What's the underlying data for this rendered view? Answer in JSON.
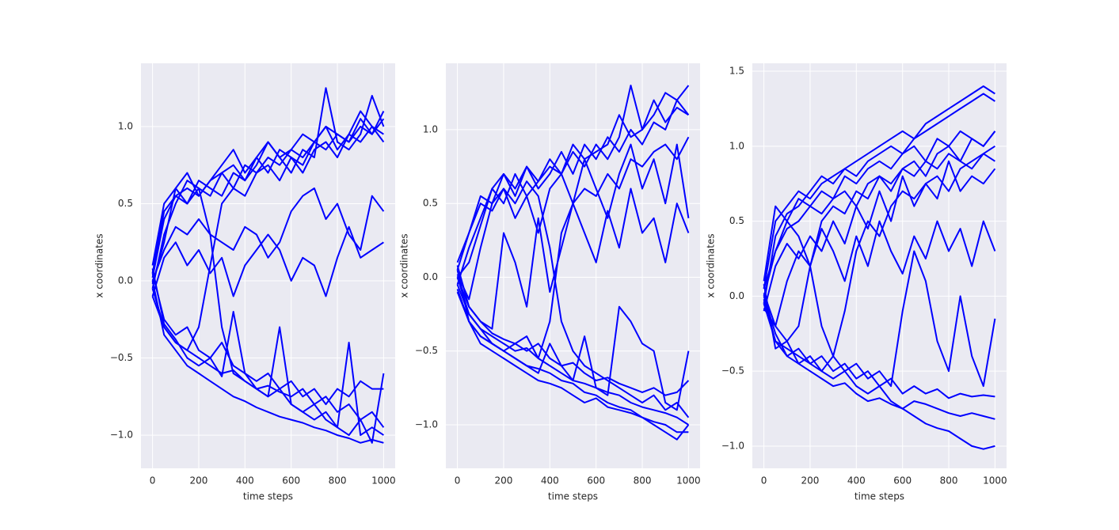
{
  "chart_data": [
    {
      "type": "line",
      "x_label": "time steps",
      "y_label": "x coordinates",
      "color": "#0000ff",
      "background": "#eaeaf2",
      "grid": true,
      "xlim": [
        -50,
        1050
      ],
      "ylim": [
        -1.215,
        1.41
      ],
      "xticks": [
        0,
        200,
        400,
        600,
        800,
        1000
      ],
      "yticks": [
        {
          "value": -1,
          "label": "−1.0"
        },
        {
          "value": -0.5,
          "label": "−0.5"
        },
        {
          "value": 0,
          "label": "0.0"
        },
        0.5,
        {
          "value": 1,
          "label": "1.0"
        }
      ],
      "x": [
        0,
        50,
        100,
        150,
        200,
        250,
        300,
        350,
        400,
        450,
        500,
        550,
        600,
        650,
        700,
        750,
        800,
        850,
        900,
        950,
        1000
      ],
      "series": [
        {
          "values": [
            0.05,
            0.45,
            0.55,
            0.6,
            0.55,
            0.65,
            0.7,
            0.6,
            0.75,
            0.7,
            0.8,
            0.75,
            0.85,
            0.8,
            0.9,
            0.85,
            0.95,
            0.9,
            1.0,
            0.95,
            1.05
          ]
        },
        {
          "values": [
            -0.05,
            0.3,
            0.5,
            0.65,
            0.6,
            0.55,
            0.7,
            0.75,
            0.65,
            0.8,
            0.7,
            0.85,
            0.8,
            0.75,
            0.9,
            1.0,
            0.85,
            0.95,
            1.1,
            1.0,
            0.95
          ]
        },
        {
          "values": [
            0.1,
            0.5,
            0.6,
            0.5,
            0.65,
            0.6,
            0.55,
            0.7,
            0.65,
            0.75,
            0.9,
            0.8,
            0.7,
            0.85,
            0.8,
            1.25,
            0.9,
            0.85,
            0.95,
            1.2,
            1.0
          ]
        },
        {
          "values": [
            0.0,
            0.2,
            0.35,
            0.3,
            0.4,
            0.3,
            0.25,
            0.2,
            0.35,
            0.3,
            0.15,
            0.25,
            0.45,
            0.55,
            0.6,
            0.4,
            0.5,
            0.3,
            0.2,
            0.55,
            0.45
          ]
        },
        {
          "values": [
            -0.1,
            0.15,
            0.25,
            0.1,
            0.2,
            0.05,
            0.15,
            -0.1,
            0.1,
            0.2,
            0.3,
            0.2,
            0.0,
            0.15,
            0.1,
            -0.1,
            0.15,
            0.35,
            0.15,
            0.2,
            0.25
          ]
        },
        {
          "values": [
            -0.1,
            -0.3,
            -0.4,
            -0.45,
            -0.5,
            -0.55,
            -0.6,
            -0.58,
            -0.65,
            -0.7,
            -0.68,
            -0.72,
            -0.75,
            -0.7,
            -0.8,
            -0.75,
            -0.85,
            -0.8,
            -0.9,
            -0.85,
            -0.95
          ]
        },
        {
          "values": [
            0.0,
            -0.35,
            -0.45,
            -0.55,
            -0.6,
            -0.65,
            -0.7,
            -0.75,
            -0.78,
            -0.82,
            -0.85,
            -0.88,
            -0.9,
            -0.92,
            -0.95,
            -0.97,
            -1.0,
            -1.02,
            -1.05,
            -1.03,
            -1.05
          ]
        },
        {
          "values": [
            0.05,
            -0.25,
            -0.35,
            -0.3,
            -0.45,
            -0.5,
            -0.4,
            -0.55,
            -0.6,
            -0.65,
            -0.6,
            -0.7,
            -0.65,
            -0.75,
            -0.7,
            -0.8,
            -0.7,
            -0.75,
            -0.65,
            -0.7,
            -0.7
          ]
        },
        {
          "values": [
            -0.05,
            -0.3,
            -0.4,
            -0.45,
            -0.3,
            0.1,
            0.5,
            0.6,
            0.55,
            0.7,
            0.75,
            0.65,
            0.8,
            0.7,
            0.85,
            0.9,
            0.8,
            0.95,
            0.9,
            1.0,
            0.9
          ]
        },
        {
          "values": [
            0.08,
            -0.28,
            -0.38,
            -0.5,
            -0.55,
            -0.5,
            -0.62,
            -0.2,
            -0.6,
            -0.7,
            -0.75,
            -0.3,
            -0.8,
            -0.85,
            -0.8,
            -0.9,
            -0.95,
            -0.4,
            -1.0,
            -0.95,
            -1.0
          ]
        },
        {
          "values": [
            0.02,
            0.4,
            0.55,
            0.5,
            0.6,
            0.3,
            -0.3,
            -0.6,
            -0.65,
            -0.7,
            -0.75,
            -0.7,
            -0.8,
            -0.85,
            -0.9,
            -0.85,
            -0.95,
            -1.0,
            -0.9,
            -1.05,
            -0.6
          ]
        },
        {
          "values": [
            -0.02,
            0.25,
            0.6,
            0.7,
            0.55,
            0.65,
            0.75,
            0.85,
            0.7,
            0.8,
            0.9,
            0.8,
            0.85,
            0.95,
            0.9,
            1.0,
            0.95,
            0.9,
            1.05,
            0.95,
            1.1
          ]
        }
      ]
    },
    {
      "type": "line",
      "x_label": "time steps",
      "y_label": "x coordinates",
      "color": "#0000ff",
      "background": "#eaeaf2",
      "grid": true,
      "xlim": [
        -50,
        1050
      ],
      "ylim": [
        -1.295,
        1.45
      ],
      "xticks": [
        0,
        200,
        400,
        600,
        800,
        1000
      ],
      "yticks": [
        {
          "value": -1,
          "label": "−1.0"
        },
        {
          "value": -0.5,
          "label": "−0.5"
        },
        {
          "value": 0,
          "label": "0.0"
        },
        0.5,
        {
          "value": 1,
          "label": "1.0"
        }
      ],
      "x": [
        0,
        50,
        100,
        150,
        200,
        250,
        300,
        350,
        400,
        450,
        500,
        550,
        600,
        650,
        700,
        750,
        800,
        850,
        900,
        950,
        1000
      ],
      "series": [
        {
          "values": [
            0.05,
            0.3,
            0.55,
            0.5,
            0.7,
            0.6,
            0.75,
            0.65,
            0.8,
            0.7,
            0.85,
            0.75,
            0.9,
            0.8,
            0.95,
            1.3,
            1.0,
            1.1,
            1.25,
            1.2,
            1.3
          ]
        },
        {
          "values": [
            -0.05,
            0.2,
            0.4,
            0.6,
            0.5,
            0.7,
            0.55,
            0.65,
            0.75,
            0.7,
            0.9,
            0.8,
            0.85,
            0.9,
            1.1,
            0.95,
            1.0,
            1.2,
            1.05,
            1.15,
            1.1
          ]
        },
        {
          "values": [
            0.0,
            -0.25,
            -0.35,
            -0.4,
            -0.45,
            -0.5,
            -0.48,
            -0.55,
            -0.6,
            -0.65,
            -0.7,
            -0.72,
            -0.75,
            -0.78,
            -0.8,
            -0.85,
            -0.88,
            -0.9,
            -0.92,
            -0.95,
            -1.0
          ]
        },
        {
          "values": [
            0.08,
            -0.2,
            -0.3,
            -0.38,
            -0.42,
            -0.45,
            -0.5,
            -0.45,
            -0.55,
            -0.6,
            -0.58,
            -0.65,
            -0.7,
            -0.68,
            -0.72,
            -0.75,
            -0.78,
            -0.75,
            -0.8,
            -0.78,
            -0.7
          ]
        },
        {
          "values": [
            -0.08,
            -0.3,
            -0.4,
            -0.45,
            -0.5,
            -0.55,
            -0.6,
            -0.62,
            -0.65,
            -0.7,
            -0.72,
            -0.78,
            -0.8,
            -0.85,
            -0.88,
            -0.9,
            -0.95,
            -0.98,
            -1.0,
            -1.05,
            -1.05
          ]
        },
        {
          "values": [
            0.02,
            -0.15,
            0.2,
            0.5,
            0.6,
            0.4,
            0.55,
            0.3,
            0.6,
            0.7,
            0.5,
            0.8,
            0.6,
            0.4,
            0.7,
            0.9,
            0.6,
            0.8,
            0.5,
            0.9,
            0.4
          ]
        },
        {
          "values": [
            0.0,
            -0.2,
            -0.3,
            -0.35,
            0.3,
            0.1,
            -0.2,
            0.4,
            -0.1,
            0.2,
            0.5,
            0.3,
            0.1,
            0.45,
            0.2,
            0.6,
            0.3,
            0.4,
            0.1,
            0.5,
            0.3
          ]
        },
        {
          "values": [
            0.05,
            -0.3,
            -0.4,
            -0.45,
            -0.5,
            -0.45,
            -0.4,
            -0.55,
            -0.3,
            0.3,
            0.5,
            0.6,
            0.55,
            0.7,
            0.6,
            0.8,
            0.75,
            0.85,
            0.9,
            0.8,
            0.95
          ]
        },
        {
          "values": [
            -0.05,
            -0.25,
            -0.35,
            -0.45,
            -0.5,
            -0.55,
            -0.6,
            -0.65,
            -0.45,
            -0.6,
            -0.7,
            -0.4,
            -0.75,
            -0.8,
            -0.2,
            -0.3,
            -0.45,
            -0.5,
            -0.85,
            -0.9,
            -0.5
          ]
        },
        {
          "values": [
            0.1,
            0.3,
            0.5,
            0.45,
            0.6,
            0.5,
            0.65,
            0.55,
            0.2,
            -0.3,
            -0.5,
            -0.6,
            -0.65,
            -0.7,
            -0.75,
            -0.8,
            -0.85,
            -0.8,
            -0.9,
            -0.85,
            -0.95
          ]
        },
        {
          "values": [
            -0.1,
            -0.3,
            -0.45,
            -0.5,
            -0.55,
            -0.6,
            -0.65,
            -0.7,
            -0.72,
            -0.75,
            -0.8,
            -0.85,
            -0.82,
            -0.88,
            -0.9,
            -0.92,
            -0.95,
            -1.0,
            -1.05,
            -1.1,
            -1.0
          ]
        },
        {
          "values": [
            0.0,
            0.1,
            0.35,
            0.6,
            0.7,
            0.55,
            0.75,
            0.6,
            0.7,
            0.85,
            0.7,
            0.9,
            0.8,
            0.95,
            0.85,
            1.0,
            0.9,
            1.05,
            1.0,
            1.2,
            1.1
          ]
        }
      ]
    },
    {
      "type": "line",
      "x_label": "time steps",
      "y_label": "x coordinates",
      "color": "#0000ff",
      "background": "#eaeaf2",
      "grid": true,
      "xlim": [
        -50,
        1050
      ],
      "ylim": [
        -1.148,
        1.553
      ],
      "xticks": [
        0,
        200,
        400,
        600,
        800,
        1000
      ],
      "yticks": [
        {
          "value": -1,
          "label": "−1.0"
        },
        {
          "value": -0.5,
          "label": "−0.5"
        },
        {
          "value": 0,
          "label": "0.0"
        },
        0.5,
        {
          "value": 1,
          "label": "1.0"
        },
        1.5
      ],
      "x": [
        0,
        50,
        100,
        150,
        200,
        250,
        300,
        350,
        400,
        450,
        500,
        550,
        600,
        650,
        700,
        750,
        800,
        850,
        900,
        950,
        1000
      ],
      "series": [
        {
          "values": [
            0.05,
            0.5,
            0.6,
            0.7,
            0.65,
            0.75,
            0.8,
            0.85,
            0.9,
            0.95,
            1.0,
            1.05,
            1.1,
            1.05,
            1.15,
            1.2,
            1.25,
            1.3,
            1.35,
            1.4,
            1.35
          ]
        },
        {
          "values": [
            -0.05,
            0.4,
            0.55,
            0.6,
            0.7,
            0.8,
            0.75,
            0.85,
            0.8,
            0.9,
            0.95,
            1.0,
            0.95,
            1.05,
            1.1,
            1.15,
            1.2,
            1.25,
            1.3,
            1.35,
            1.3
          ]
        },
        {
          "values": [
            0.1,
            0.6,
            0.5,
            0.65,
            0.6,
            0.7,
            0.65,
            0.8,
            0.75,
            0.85,
            0.9,
            0.85,
            0.95,
            1.0,
            0.9,
            1.05,
            1.0,
            1.1,
            1.05,
            1.0,
            1.1
          ]
        },
        {
          "values": [
            0.0,
            0.3,
            0.45,
            0.5,
            0.6,
            0.55,
            0.65,
            0.7,
            0.6,
            0.75,
            0.8,
            0.7,
            0.85,
            0.8,
            0.9,
            0.85,
            0.95,
            0.9,
            0.85,
            0.95,
            0.9
          ]
        },
        {
          "values": [
            -0.1,
            0.2,
            0.35,
            0.25,
            0.4,
            0.3,
            0.5,
            0.35,
            0.6,
            0.45,
            0.7,
            0.5,
            0.8,
            0.6,
            0.75,
            0.65,
            0.9,
            0.7,
            0.8,
            0.75,
            0.85
          ]
        },
        {
          "values": [
            0.02,
            -0.2,
            0.1,
            0.3,
            0.2,
            0.45,
            0.3,
            0.1,
            0.4,
            0.2,
            0.5,
            0.3,
            0.15,
            0.4,
            0.25,
            0.5,
            0.3,
            0.45,
            0.2,
            0.5,
            0.3
          ]
        },
        {
          "values": [
            -0.05,
            -0.3,
            -0.35,
            -0.4,
            -0.45,
            -0.4,
            -0.5,
            -0.45,
            -0.55,
            -0.5,
            -0.6,
            -0.55,
            -0.65,
            -0.6,
            -0.65,
            -0.62,
            -0.68,
            -0.65,
            -0.67,
            -0.66,
            -0.67
          ]
        },
        {
          "values": [
            0.0,
            -0.25,
            -0.4,
            -0.45,
            -0.5,
            -0.55,
            -0.6,
            -0.58,
            -0.65,
            -0.7,
            -0.68,
            -0.72,
            -0.75,
            -0.8,
            -0.85,
            -0.88,
            -0.9,
            -0.95,
            -1.0,
            -1.02,
            -1.0
          ]
        },
        {
          "values": [
            0.08,
            -0.35,
            -0.3,
            -0.45,
            -0.4,
            -0.5,
            -0.55,
            -0.5,
            -0.6,
            -0.65,
            -0.6,
            -0.7,
            -0.75,
            -0.7,
            -0.72,
            -0.75,
            -0.78,
            -0.8,
            -0.78,
            -0.8,
            -0.82
          ]
        },
        {
          "values": [
            -0.08,
            -0.2,
            -0.3,
            -0.2,
            0.2,
            0.5,
            0.6,
            0.55,
            0.7,
            0.65,
            0.8,
            0.75,
            0.85,
            0.9,
            0.8,
            0.95,
            1.0,
            0.9,
            1.05,
            1.0,
            1.1
          ]
        },
        {
          "values": [
            0.05,
            0.3,
            0.5,
            0.4,
            0.2,
            -0.2,
            -0.4,
            -0.5,
            -0.45,
            -0.55,
            -0.5,
            -0.6,
            -0.1,
            0.3,
            0.1,
            -0.3,
            -0.5,
            0.0,
            -0.4,
            -0.6,
            -0.15
          ]
        },
        {
          "values": [
            -0.02,
            -0.3,
            -0.4,
            -0.35,
            -0.45,
            -0.5,
            -0.4,
            -0.1,
            0.3,
            0.5,
            0.4,
            0.6,
            0.7,
            0.65,
            0.75,
            0.8,
            0.7,
            0.85,
            0.9,
            0.95,
            1.0
          ]
        }
      ]
    }
  ]
}
